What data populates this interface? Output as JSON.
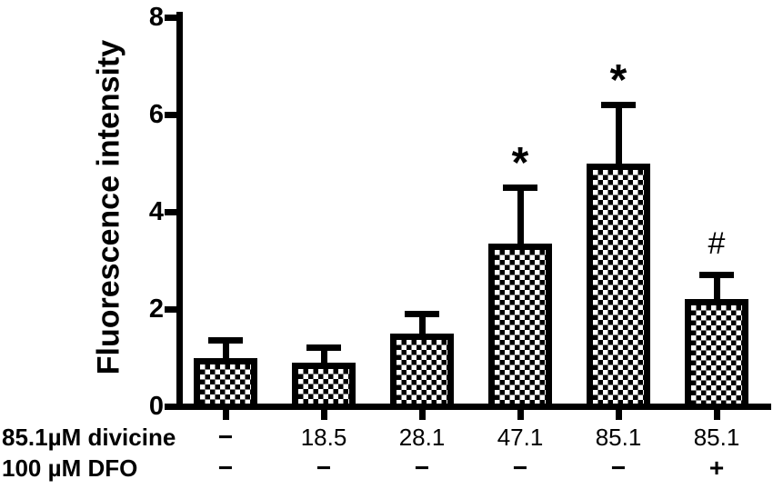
{
  "figure": {
    "background_color": "#ffffff",
    "ink_color": "#000000"
  },
  "chart_data": {
    "type": "bar",
    "title": "",
    "ylabel": "Fluorescence intensity",
    "xlabel": "",
    "ylim": [
      0,
      8
    ],
    "yticks": [
      "0",
      "2",
      "4",
      "6",
      "8"
    ],
    "grid": false,
    "legend": false,
    "bar_fill": "black-white-checkerboard",
    "x_rows": [
      {
        "label": "85.1µM divicine",
        "values": [
          "−",
          "18.5",
          "28.1",
          "47.1",
          "85.1",
          "85.1"
        ]
      },
      {
        "label": "100 µM DFO",
        "values": [
          "−",
          "−",
          "−",
          "−",
          "−",
          "+"
        ]
      }
    ],
    "series": [
      {
        "name": "Fluorescence intensity",
        "values": [
          1.0,
          0.9,
          1.5,
          3.35,
          5.0,
          2.2
        ],
        "errors": [
          0.35,
          0.3,
          0.4,
          1.15,
          1.2,
          0.5
        ],
        "error_direction": "up",
        "annotations": [
          "",
          "",
          "",
          "*",
          "*",
          "#"
        ]
      }
    ]
  }
}
